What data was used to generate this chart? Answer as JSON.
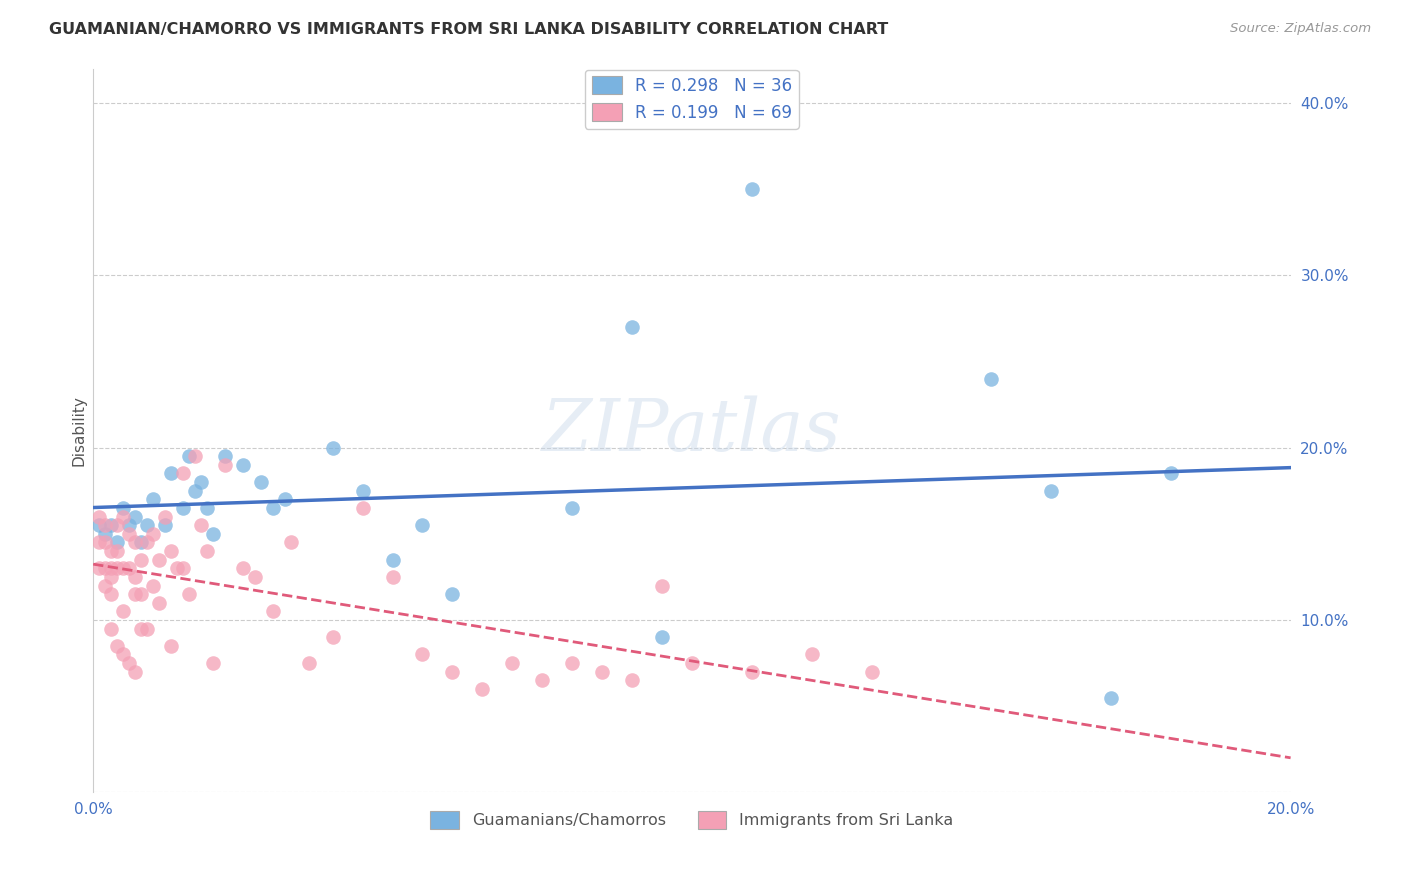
{
  "title": "GUAMANIAN/CHAMORRO VS IMMIGRANTS FROM SRI LANKA DISABILITY CORRELATION CHART",
  "source": "Source: ZipAtlas.com",
  "ylabel": "Disability",
  "xlim": [
    0.0,
    0.2
  ],
  "ylim": [
    0.0,
    0.42
  ],
  "series1_color": "#7ab3e0",
  "series2_color": "#f4a0b5",
  "trendline1_color": "#4472c4",
  "trendline2_color": "#e05a7a",
  "legend1_label": "R = 0.298   N = 36",
  "legend2_label": "R = 0.199   N = 69",
  "legend_label1": "Guamanians/Chamorros",
  "legend_label2": "Immigrants from Sri Lanka",
  "guamanian_x": [
    0.001,
    0.002,
    0.003,
    0.004,
    0.005,
    0.006,
    0.007,
    0.008,
    0.009,
    0.01,
    0.012,
    0.013,
    0.015,
    0.016,
    0.017,
    0.018,
    0.019,
    0.02,
    0.022,
    0.025,
    0.028,
    0.03,
    0.032,
    0.04,
    0.045,
    0.05,
    0.055,
    0.06,
    0.08,
    0.09,
    0.095,
    0.11,
    0.15,
    0.16,
    0.17,
    0.18
  ],
  "guamanian_y": [
    0.155,
    0.15,
    0.155,
    0.145,
    0.165,
    0.155,
    0.16,
    0.145,
    0.155,
    0.17,
    0.155,
    0.185,
    0.165,
    0.195,
    0.175,
    0.18,
    0.165,
    0.15,
    0.195,
    0.19,
    0.18,
    0.165,
    0.17,
    0.2,
    0.175,
    0.135,
    0.155,
    0.115,
    0.165,
    0.27,
    0.09,
    0.35,
    0.24,
    0.175,
    0.055,
    0.185
  ],
  "srilanka_x": [
    0.001,
    0.001,
    0.001,
    0.002,
    0.002,
    0.002,
    0.002,
    0.003,
    0.003,
    0.003,
    0.003,
    0.003,
    0.004,
    0.004,
    0.004,
    0.004,
    0.005,
    0.005,
    0.005,
    0.005,
    0.006,
    0.006,
    0.006,
    0.007,
    0.007,
    0.007,
    0.007,
    0.008,
    0.008,
    0.008,
    0.009,
    0.009,
    0.01,
    0.01,
    0.011,
    0.011,
    0.012,
    0.013,
    0.013,
    0.014,
    0.015,
    0.015,
    0.016,
    0.017,
    0.018,
    0.019,
    0.02,
    0.022,
    0.025,
    0.027,
    0.03,
    0.033,
    0.036,
    0.04,
    0.045,
    0.05,
    0.055,
    0.06,
    0.065,
    0.07,
    0.075,
    0.08,
    0.085,
    0.09,
    0.095,
    0.1,
    0.11,
    0.12,
    0.13
  ],
  "srilanka_y": [
    0.145,
    0.13,
    0.16,
    0.12,
    0.145,
    0.155,
    0.13,
    0.125,
    0.14,
    0.115,
    0.095,
    0.13,
    0.14,
    0.085,
    0.13,
    0.155,
    0.105,
    0.13,
    0.16,
    0.08,
    0.075,
    0.15,
    0.13,
    0.07,
    0.125,
    0.145,
    0.115,
    0.135,
    0.115,
    0.095,
    0.145,
    0.095,
    0.12,
    0.15,
    0.135,
    0.11,
    0.16,
    0.14,
    0.085,
    0.13,
    0.13,
    0.185,
    0.115,
    0.195,
    0.155,
    0.14,
    0.075,
    0.19,
    0.13,
    0.125,
    0.105,
    0.145,
    0.075,
    0.09,
    0.165,
    0.125,
    0.08,
    0.07,
    0.06,
    0.075,
    0.065,
    0.075,
    0.07,
    0.065,
    0.12,
    0.075,
    0.07,
    0.08,
    0.07
  ]
}
